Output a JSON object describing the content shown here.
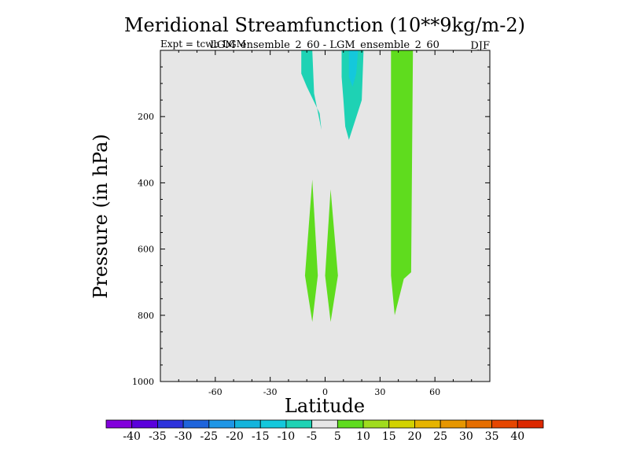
{
  "chart_data": {
    "type": "heatmap",
    "title": "Meridional Streamfunction (10**9kg/m-2)",
    "subtitle_left": "Expt = tcwb LGM",
    "subtitle_center": "LGM_ensemble_2_60 - LGM_ensemble_2_60",
    "subtitle_right": "DJF",
    "xlabel": "Latitude",
    "ylabel": "Pressure (in hPa)",
    "xlim": [
      -90,
      90
    ],
    "ylim": [
      1000,
      0
    ],
    "x_ticks": [
      -60,
      -30,
      0,
      30,
      60
    ],
    "y_ticks": [
      200,
      400,
      600,
      800,
      1000
    ],
    "background_color": "#e6e6e6",
    "regions": [
      {
        "name": "region-a",
        "level": "-10 to -5",
        "color": "#1ed2b4",
        "outline": [
          [
            -13,
            0
          ],
          [
            -7,
            0
          ],
          [
            -6,
            130
          ],
          [
            -2,
            240
          ],
          [
            -3,
            190
          ],
          [
            -10,
            110
          ],
          [
            -13,
            70
          ]
        ]
      },
      {
        "name": "region-b",
        "level": "-10 to -5",
        "color": "#1ed2b4",
        "outline": [
          [
            9,
            0
          ],
          [
            21,
            0
          ],
          [
            20,
            150
          ],
          [
            13,
            270
          ],
          [
            11,
            230
          ],
          [
            10,
            150
          ],
          [
            9,
            80
          ]
        ]
      },
      {
        "name": "region-b-core",
        "level": "-15 to -10",
        "color": "#14c8dc",
        "outline": [
          [
            13,
            0
          ],
          [
            18,
            0
          ],
          [
            17,
            70
          ],
          [
            15,
            110
          ],
          [
            13,
            80
          ]
        ]
      },
      {
        "name": "region-c",
        "level": "5 to 10",
        "color": "#5fdc1e",
        "outline": [
          [
            36,
            0
          ],
          [
            48,
            0
          ],
          [
            47,
            670
          ],
          [
            43,
            690
          ],
          [
            38,
            800
          ],
          [
            36,
            680
          ]
        ]
      },
      {
        "name": "region-d",
        "level": "5 to 10",
        "color": "#5fdc1e",
        "outline": [
          [
            -7,
            390
          ],
          [
            -4,
            680
          ],
          [
            -7,
            820
          ],
          [
            -11,
            680
          ]
        ]
      },
      {
        "name": "region-e",
        "level": "5 to 10",
        "color": "#5fdc1e",
        "outline": [
          [
            3,
            420
          ],
          [
            7,
            680
          ],
          [
            3,
            820
          ],
          [
            0,
            680
          ]
        ]
      }
    ],
    "colorbar": {
      "labels": [
        "-40",
        "-35",
        "-30",
        "-25",
        "-20",
        "-15",
        "-10",
        "-5",
        "5",
        "10",
        "15",
        "20",
        "25",
        "30",
        "35",
        "40"
      ],
      "colors": [
        "#8200dc",
        "#5a00dc",
        "#2d32dc",
        "#1e64dc",
        "#1e96e6",
        "#14b4dc",
        "#14c8dc",
        "#1ed2b4",
        "#e6e6e6",
        "#5fdc1e",
        "#a0dc1e",
        "#d2d200",
        "#e6b400",
        "#e69600",
        "#e66e00",
        "#e64600",
        "#dc2800"
      ]
    }
  }
}
